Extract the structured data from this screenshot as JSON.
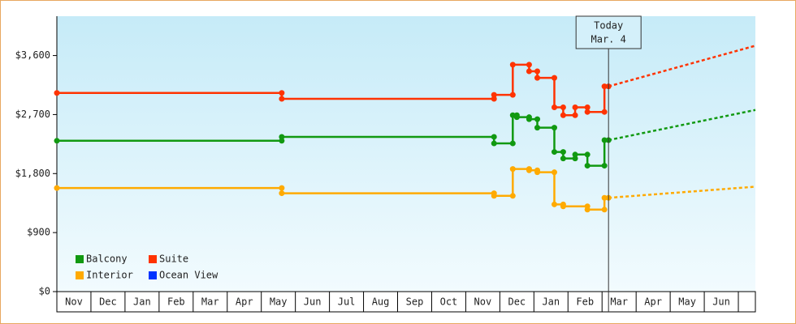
{
  "chart_data": {
    "type": "line",
    "x_categories": [
      "Nov",
      "Dec",
      "Jan",
      "Feb",
      "Mar",
      "Apr",
      "May",
      "Jun",
      "Jul",
      "Aug",
      "Sep",
      "Oct",
      "Nov",
      "Dec",
      "Jan",
      "Feb",
      "Mar",
      "Apr",
      "May",
      "Jun"
    ],
    "xlim": [
      0,
      20.5
    ],
    "ylim": [
      0,
      4200
    ],
    "yticks": [
      {
        "value": 0,
        "label": "$0"
      },
      {
        "value": 900,
        "label": "$900"
      },
      {
        "value": 1800,
        "label": "$1,800"
      },
      {
        "value": 2700,
        "label": "$2,700"
      },
      {
        "value": 3600,
        "label": "$3,600"
      }
    ],
    "legend": "lower left",
    "today_marker": {
      "x": 16.19,
      "label_lines": [
        "Today",
        "Mar. 4"
      ]
    },
    "series": [
      {
        "name": "Balcony",
        "color": "#119911",
        "x": [
          0,
          6.6,
          6.6,
          12.83,
          12.83,
          13.38,
          13.38,
          13.5,
          13.5,
          13.86,
          13.86,
          14.1,
          14.1,
          14.6,
          14.6,
          14.86,
          14.86,
          15.21,
          15.21,
          15.57,
          15.57,
          16.07,
          16.07,
          16.19
        ],
        "values": [
          2300,
          2300,
          2360,
          2360,
          2260,
          2260,
          2690,
          2690,
          2660,
          2660,
          2630,
          2630,
          2500,
          2500,
          2130,
          2130,
          2030,
          2030,
          2090,
          2090,
          1920,
          1920,
          2310,
          2310
        ],
        "projection_end": 2770
      },
      {
        "name": "Suite",
        "color": "#ff3300",
        "x": [
          0,
          6.6,
          6.6,
          12.83,
          12.83,
          13.38,
          13.38,
          13.86,
          13.86,
          14.1,
          14.1,
          14.6,
          14.6,
          14.86,
          14.86,
          15.21,
          15.21,
          15.57,
          15.57,
          16.07,
          16.07,
          16.19
        ],
        "values": [
          3030,
          3030,
          2940,
          2940,
          3000,
          3000,
          3460,
          3460,
          3360,
          3360,
          3260,
          3260,
          2810,
          2810,
          2690,
          2690,
          2810,
          2810,
          2740,
          2740,
          3130,
          3130
        ],
        "projection_end": 3750
      },
      {
        "name": "Interior",
        "color": "#ffaa00",
        "x": [
          0,
          6.6,
          6.6,
          12.83,
          12.83,
          13.38,
          13.38,
          13.86,
          13.86,
          14.1,
          14.1,
          14.6,
          14.6,
          14.86,
          14.86,
          15.57,
          15.57,
          16.07,
          16.07,
          16.19
        ],
        "values": [
          1580,
          1580,
          1500,
          1500,
          1460,
          1460,
          1870,
          1870,
          1850,
          1850,
          1820,
          1820,
          1330,
          1330,
          1300,
          1300,
          1250,
          1250,
          1430,
          1430
        ],
        "projection_end": 1600
      },
      {
        "name": "Ocean View",
        "color": "#0033ff",
        "x": [],
        "values": []
      }
    ]
  }
}
